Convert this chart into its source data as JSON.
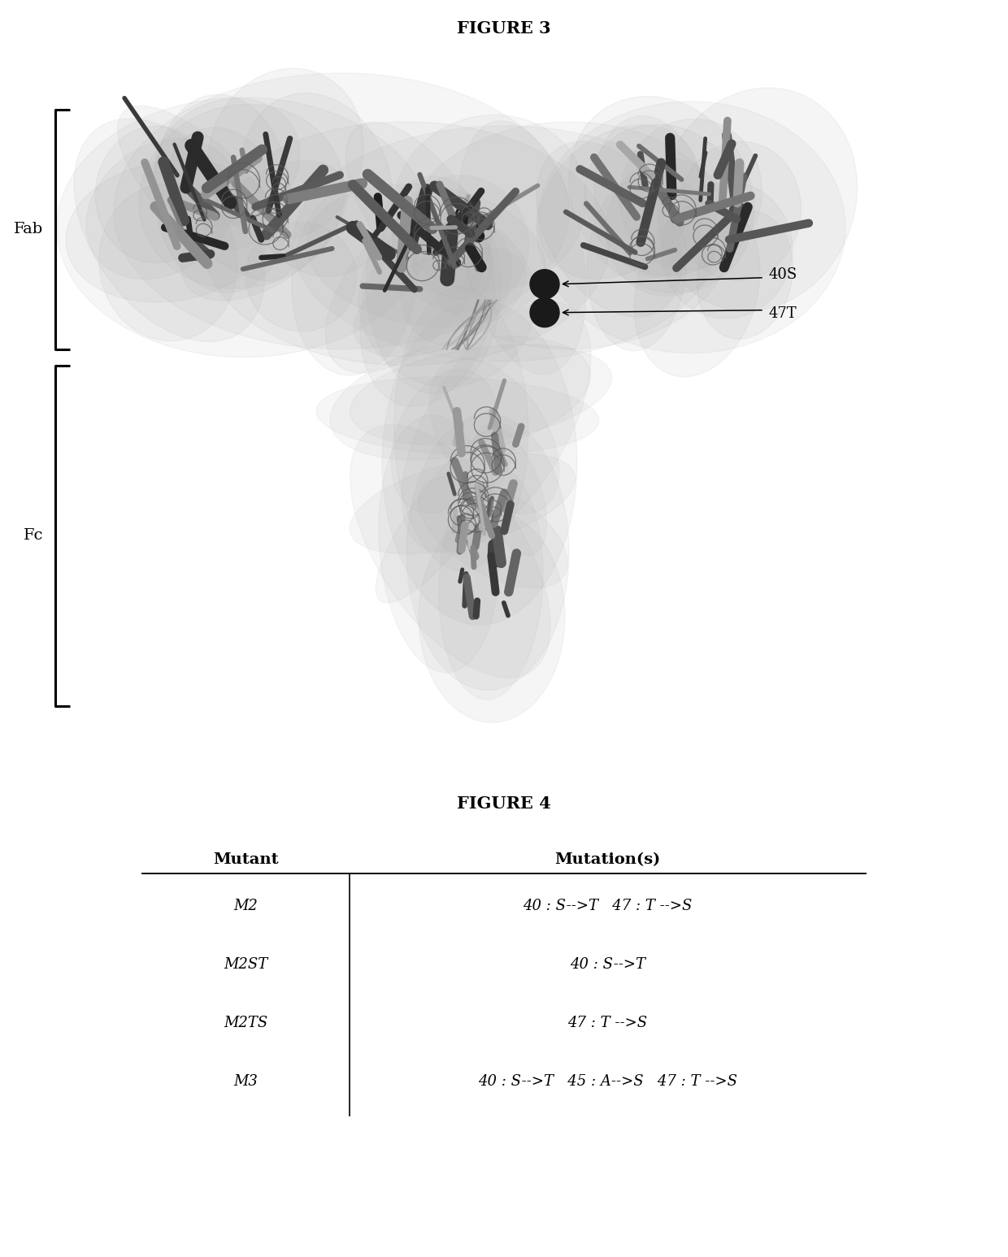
{
  "fig3_title": "FIGURE 3",
  "fig4_title": "FIGURE 4",
  "fab_label": "Fab",
  "fc_label": "Fc",
  "label_40S": "40S",
  "label_47T": "47T",
  "table_headers": [
    "Mutant",
    "Mutation(s)"
  ],
  "table_rows": [
    [
      "M2",
      "40 : S-->T   47 : T -->S"
    ],
    [
      "M2ST",
      "40 : S-->T"
    ],
    [
      "M2TS",
      "47 : T -->S"
    ],
    [
      "M3",
      "40 : S-->T   45 : A-->S   47 : T -->S"
    ]
  ],
  "bg_color": "#ffffff",
  "text_color": "#000000",
  "title_fontsize": 14,
  "label_fontsize": 13,
  "table_fontsize": 13
}
